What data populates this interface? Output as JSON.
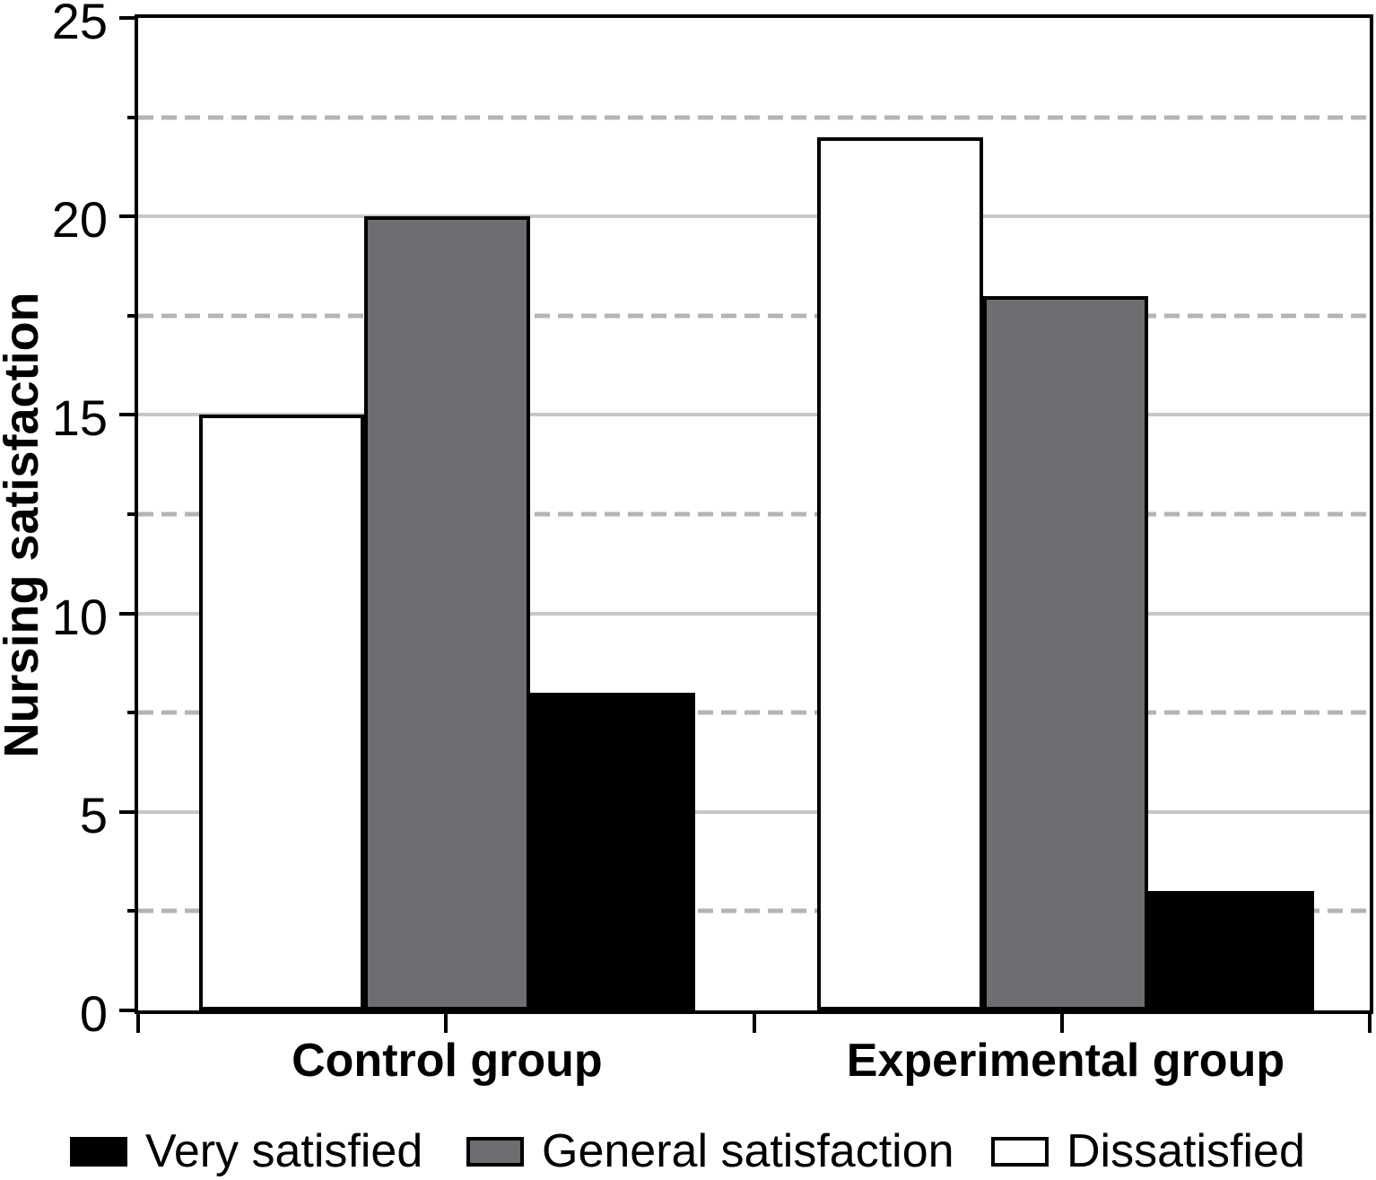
{
  "chart_data": {
    "type": "bar",
    "title": "",
    "ylabel": "Nursing satisfaction",
    "xlabel": "",
    "categories": [
      "Control group",
      "Experimental group"
    ],
    "series": [
      {
        "name": "Dissatisfied",
        "color": "#ffffff",
        "values": [
          15,
          22
        ]
      },
      {
        "name": "General satisfaction",
        "color": "#6c6e71",
        "values": [
          20,
          18
        ]
      },
      {
        "name": "Very satisfied",
        "color": "#000000",
        "values": [
          8,
          3
        ]
      }
    ],
    "ylim": [
      0,
      25
    ],
    "y_major_ticks": [
      0,
      5,
      10,
      15,
      20,
      25
    ],
    "y_minor_ticks": [
      2.5,
      7.5,
      12.5,
      17.5,
      22.5
    ],
    "grid": {
      "major_style": "solid",
      "major_color": "#c7c7c9",
      "minor_style": "dashed",
      "minor_color": "#b4b4b6"
    },
    "axis_color": "#000000",
    "legend_position": "bottom",
    "legend": [
      {
        "label": "Very satisfied",
        "color": "#000000"
      },
      {
        "label": "General satisfaction",
        "color": "#6c6e71"
      },
      {
        "label": "Dissatisfied",
        "color": "#ffffff"
      }
    ]
  }
}
